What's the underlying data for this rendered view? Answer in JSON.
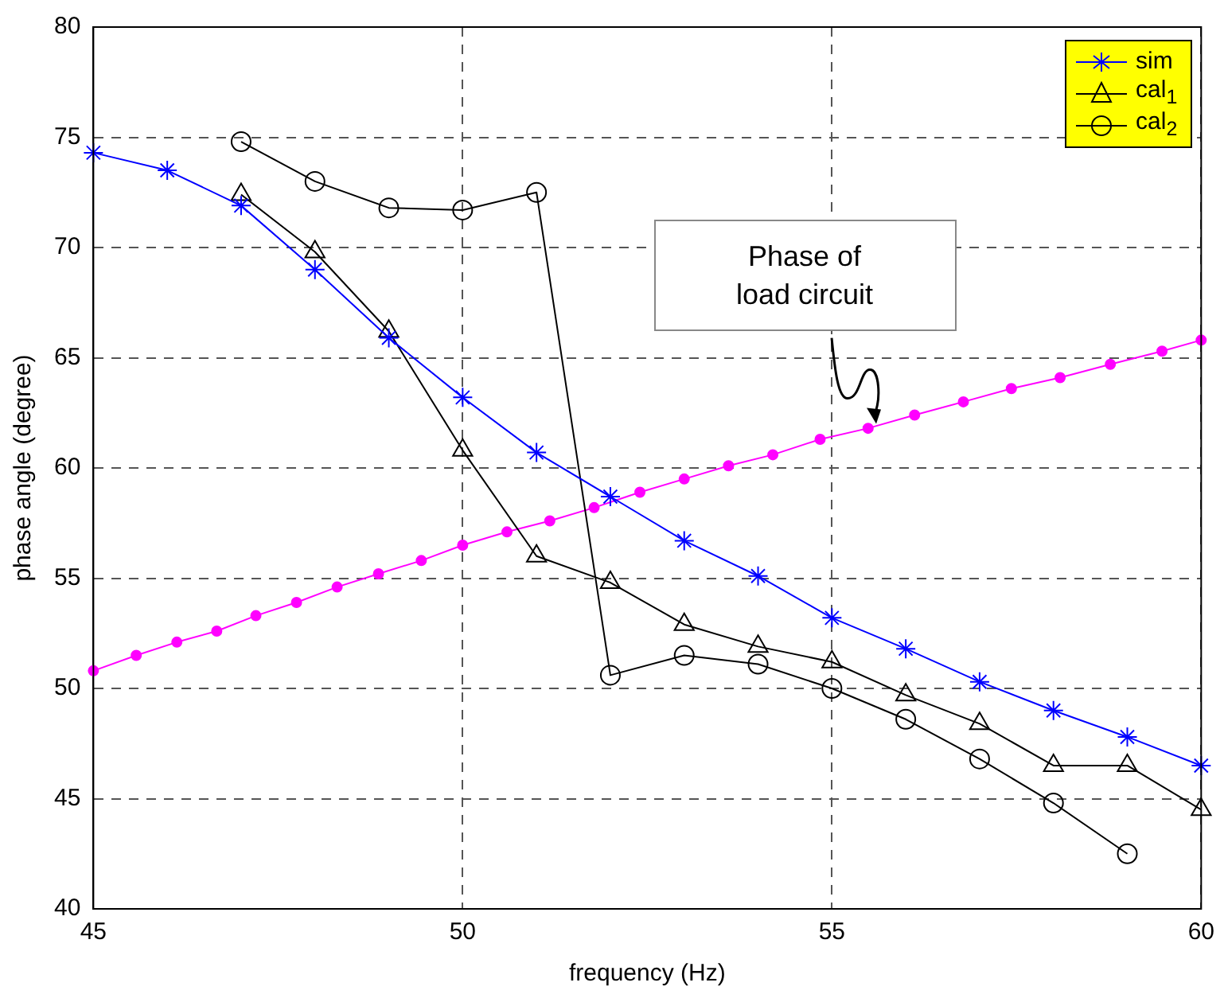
{
  "chart_data": {
    "type": "line",
    "xlabel": "frequency (Hz)",
    "ylabel": "phase angle (degree)",
    "xlim": [
      45,
      60
    ],
    "xticks": [
      45,
      50,
      55,
      60
    ],
    "ylim": [
      40,
      80
    ],
    "yticks": [
      40,
      45,
      50,
      55,
      60,
      65,
      70,
      75,
      80
    ],
    "grid": true,
    "legend": "top right",
    "line_style": "solid",
    "annotations": [
      {
        "text": "Phase of load circuit",
        "x": 55.6,
        "y": 62
      }
    ],
    "series": [
      {
        "name": "sim",
        "color": "#0000ff",
        "marker": "cross",
        "x": [
          45,
          46,
          47,
          48,
          49,
          50,
          51,
          52,
          53,
          54,
          55,
          56,
          57,
          58,
          59,
          60
        ],
        "values": [
          74.3,
          73.5,
          71.9,
          69.0,
          65.9,
          63.2,
          60.7,
          58.7,
          56.7,
          55.1,
          53.2,
          51.8,
          50.3,
          49.0,
          47.8,
          46.5
        ]
      },
      {
        "name": "cal$_{1}$",
        "color": "#000000",
        "marker": "triangle",
        "x": [
          47,
          48,
          49,
          50,
          51,
          52,
          53,
          54,
          55,
          56,
          57,
          58,
          59,
          60
        ],
        "values": [
          72.4,
          69.8,
          66.2,
          60.8,
          56.0,
          54.8,
          52.9,
          51.9,
          51.2,
          49.7,
          48.4,
          46.5,
          46.5,
          44.5
        ]
      },
      {
        "name": "cal$_{2}$",
        "color": "#000000",
        "marker": "circle",
        "x": [
          47,
          48,
          49,
          50,
          51,
          52,
          53,
          54,
          55,
          56,
          57,
          58,
          59
        ],
        "values": [
          74.8,
          73.0,
          71.8,
          71.7,
          72.5,
          50.6,
          51.5,
          51.1,
          50.0,
          48.6,
          46.8,
          44.8,
          42.5
        ]
      },
      {
        "color": "#ff00ff",
        "marker": "dot",
        "x": [
          45,
          45.58,
          46.13,
          46.67,
          47.2,
          47.75,
          48.3,
          48.86,
          49.44,
          50,
          50.6,
          51.18,
          51.78,
          52.4,
          53.0,
          53.6,
          54.2,
          54.84,
          55.49,
          56.12,
          56.78,
          57.43,
          58.09,
          58.77,
          59.47,
          60
        ],
        "values": [
          50.8,
          51.5,
          52.1,
          52.6,
          53.3,
          53.9,
          54.6,
          55.2,
          55.8,
          56.5,
          57.1,
          57.6,
          58.2,
          58.9,
          59.5,
          60.1,
          60.6,
          61.3,
          61.8,
          62.4,
          63.0,
          63.6,
          64.1,
          64.7,
          65.3,
          65.8
        ]
      }
    ]
  }
}
